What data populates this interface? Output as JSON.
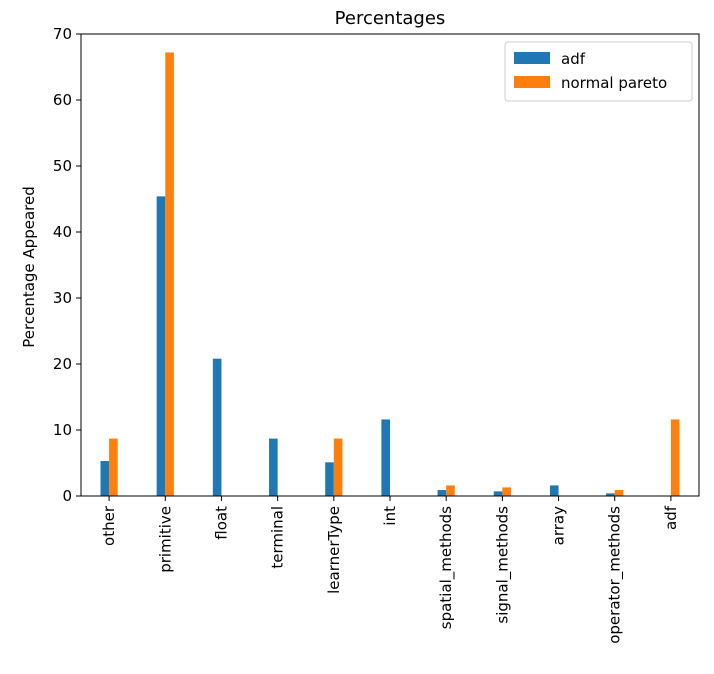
{
  "chart_data": {
    "type": "bar",
    "title": "Percentages",
    "xlabel": "",
    "ylabel": "Percentage Appeared",
    "ylim": [
      0,
      70
    ],
    "yticks": [
      0,
      10,
      20,
      30,
      40,
      50,
      60,
      70
    ],
    "grid": false,
    "legend_position": "top-right",
    "categories": [
      "other",
      "primitive",
      "float",
      "terminal",
      "learnerType",
      "int",
      "spatial_methods",
      "signal_methods",
      "array",
      "operator_methods",
      "adf"
    ],
    "series": [
      {
        "name": "adf",
        "color": "#1f77b4",
        "values": [
          5.3,
          45.4,
          20.8,
          8.7,
          5.1,
          11.6,
          0.9,
          0.7,
          1.6,
          0.4,
          0
        ]
      },
      {
        "name": "normal pareto",
        "color": "#ff7f0e",
        "values": [
          8.7,
          67.2,
          0,
          0,
          8.7,
          0,
          1.6,
          1.3,
          0,
          0.9,
          11.6
        ]
      }
    ]
  }
}
